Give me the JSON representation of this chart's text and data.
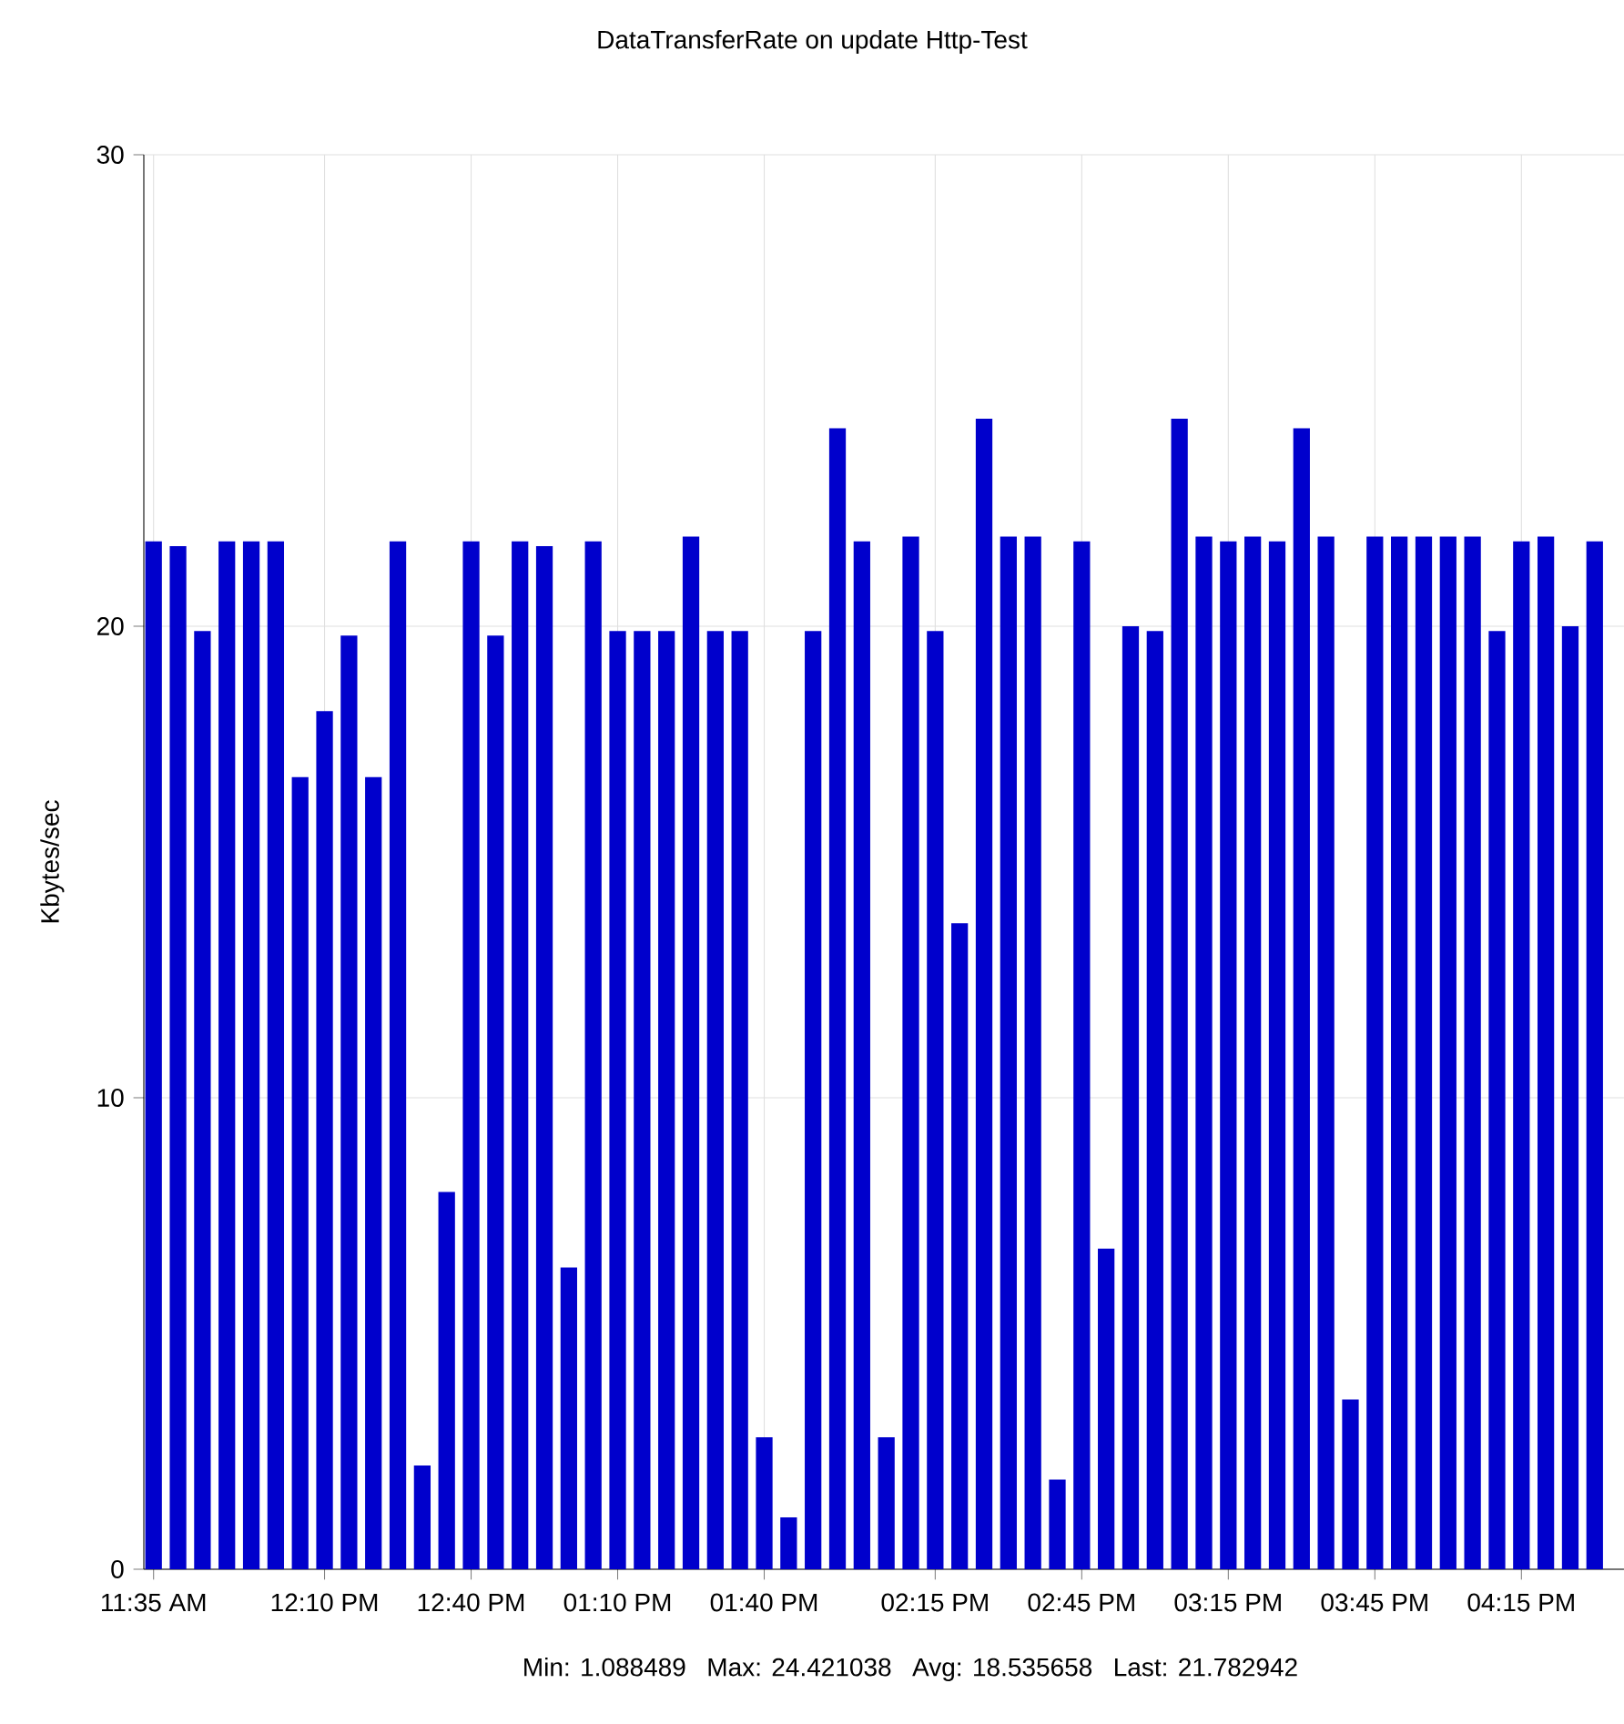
{
  "chart_data": {
    "type": "bar",
    "title": "DataTransferRate on update Http-Test",
    "ylabel": "Kbytes/sec",
    "color": "#0000cc",
    "x": [
      11.5833,
      11.6667,
      11.75,
      11.8333,
      11.9167,
      12.0,
      12.0833,
      12.1667,
      12.25,
      12.3333,
      12.4167,
      12.5,
      12.5833,
      12.6667,
      12.75,
      12.8333,
      12.9167,
      13.0,
      13.0833,
      13.1667,
      13.25,
      13.3333,
      13.4167,
      13.5,
      13.5833,
      13.6667,
      13.75,
      13.8333,
      13.9167,
      14.0,
      14.0833,
      14.1667,
      14.25,
      14.3333,
      14.4167,
      14.5,
      14.5833,
      14.6667,
      14.75,
      14.8333,
      14.9167,
      15.0,
      15.0833,
      15.1667,
      15.25,
      15.3333,
      15.4167,
      15.5,
      15.5833,
      15.6667,
      15.75,
      15.8333,
      15.9167,
      16.0,
      16.0833,
      16.1667,
      16.25,
      16.3333,
      16.4167,
      16.5
    ],
    "values": [
      21.8,
      21.7,
      19.9,
      21.8,
      21.8,
      21.8,
      16.8,
      18.2,
      19.8,
      16.8,
      21.8,
      2.2,
      8.0,
      21.8,
      19.8,
      21.8,
      21.7,
      6.4,
      21.8,
      19.9,
      19.9,
      19.9,
      21.9,
      19.9,
      19.9,
      2.8,
      1.1,
      19.9,
      24.2,
      21.8,
      2.8,
      21.9,
      19.9,
      13.7,
      24.4,
      21.9,
      21.9,
      1.9,
      21.8,
      6.8,
      20.0,
      19.9,
      24.4,
      21.9,
      21.8,
      21.9,
      21.8,
      24.2,
      21.9,
      3.6,
      21.9,
      21.9,
      21.9,
      21.9,
      21.9,
      19.9,
      21.8,
      21.9,
      20.0,
      21.8
    ],
    "xlim": [
      11.55,
      16.6
    ],
    "xticks": [
      {
        "value": 11.5833,
        "label": "11:35 AM"
      },
      {
        "value": 12.1667,
        "label": "12:10 PM"
      },
      {
        "value": 12.6667,
        "label": "12:40 PM"
      },
      {
        "value": 13.1667,
        "label": "01:10 PM"
      },
      {
        "value": 13.6667,
        "label": "01:40 PM"
      },
      {
        "value": 14.25,
        "label": "02:15 PM"
      },
      {
        "value": 14.75,
        "label": "02:45 PM"
      },
      {
        "value": 15.25,
        "label": "03:15 PM"
      },
      {
        "value": 15.75,
        "label": "03:45 PM"
      },
      {
        "value": 16.25,
        "label": "04:15 PM"
      }
    ],
    "ylim": [
      0,
      30
    ],
    "yticks": [
      0,
      10,
      20,
      30
    ],
    "grid": true,
    "annotations": [
      "Min: 1.088489",
      "Max: 24.421038",
      "Avg: 18.535658",
      "Last: 21.782942"
    ]
  }
}
